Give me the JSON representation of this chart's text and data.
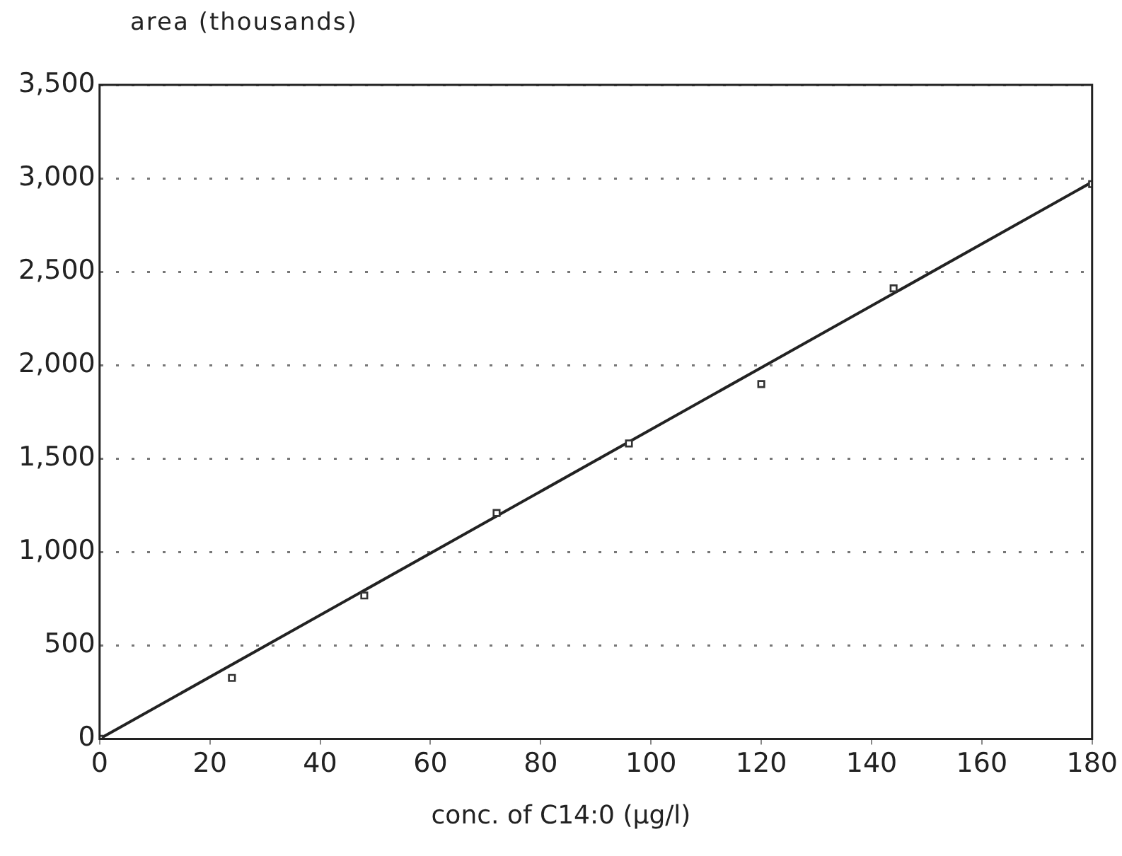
{
  "chart_data": {
    "type": "scatter",
    "xlabel": "conc. of C14:0 (µg/l)",
    "ylabel": "area (thousands)",
    "series": [
      {
        "type": "scatter",
        "color": "#333333",
        "marker": "square",
        "x": [
          0,
          24,
          48,
          72,
          96,
          120,
          144,
          180
        ],
        "values": [
          0,
          326,
          767,
          1209,
          1581,
          1899,
          2411,
          2969
        ]
      },
      {
        "type": "line",
        "color": "#222222",
        "marker": "none",
        "x": [
          0,
          180
        ],
        "values": [
          0,
          2980
        ]
      }
    ],
    "xlim": [
      0,
      180
    ],
    "xticks": [
      0,
      20,
      40,
      60,
      80,
      100,
      120,
      140,
      160,
      180
    ],
    "ylim": [
      0,
      3500
    ],
    "yticks": [
      0,
      {
        "value": 500,
        "label": "500"
      },
      {
        "value": 1000,
        "label": "1,000"
      },
      {
        "value": 1500,
        "label": "1,500"
      },
      {
        "value": 2000,
        "label": "2,000"
      },
      {
        "value": 2500,
        "label": "2,500"
      },
      {
        "value": 3000,
        "label": "3,000"
      },
      {
        "value": 3500,
        "label": "3,500"
      }
    ],
    "grid": "y",
    "legend": false
  }
}
